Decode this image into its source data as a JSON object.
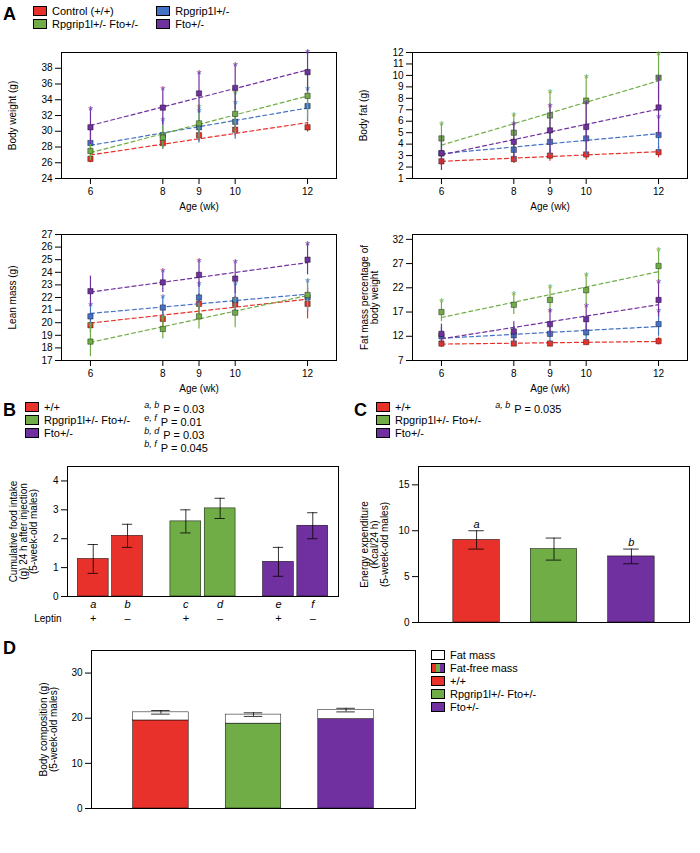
{
  "chart_data": [
    {
      "type": "scatter",
      "title": "A",
      "marker": "square",
      "line_style": "dashed",
      "legend": "top-left",
      "xlabel": "Age (wk)",
      "ylabel": "Body weight (g)",
      "x": [
        6,
        8,
        9,
        10,
        12
      ],
      "xlim": [
        5.2,
        12.8
      ],
      "xticks": [
        6,
        8,
        9,
        10,
        12
      ],
      "ylim": [
        24,
        40
      ],
      "yticks": [
        24,
        26,
        28,
        30,
        32,
        34,
        36,
        38
      ],
      "series": [
        {
          "name": "Control (+/+)",
          "color": "#e8312a",
          "values": [
            26.5,
            28.5,
            29.5,
            30.2,
            30.5
          ],
          "errors": [
            0.5,
            0.6,
            0.8,
            0.8,
            0.6
          ]
        },
        {
          "name": "Rpgrip1l+/-",
          "color": "#4472c4",
          "values": [
            28.5,
            29.5,
            30.5,
            31.2,
            33.2
          ],
          "errors": [
            1.8,
            1.8,
            2.0,
            2.2,
            2.0
          ],
          "annotations": [
            {
              "text": "*",
              "x": 6
            },
            {
              "text": "*",
              "x": 8
            },
            {
              "text": "*",
              "x": 9
            },
            {
              "text": "*",
              "x": 10
            },
            {
              "text": "*",
              "x": 12
            }
          ]
        },
        {
          "name": "Rpgrip1l+/- Fto+/-",
          "color": "#70ad47",
          "values": [
            27.5,
            29.2,
            31.0,
            32.2,
            34.5
          ],
          "errors": [
            1.2,
            1.5,
            2.0,
            2.5,
            3.0
          ],
          "annotations": [
            {
              "text": "*",
              "x": 9
            },
            {
              "text": "*",
              "x": 10
            },
            {
              "text": "*",
              "x": 12
            }
          ]
        },
        {
          "name": "Fto+/-",
          "color": "#7030a0",
          "values": [
            30.5,
            33.0,
            34.8,
            35.5,
            37.5
          ],
          "errors": [
            2.2,
            2.2,
            2.5,
            2.8,
            2.5
          ],
          "annotations": [
            {
              "text": "*",
              "x": 6
            },
            {
              "text": "*",
              "x": 8
            },
            {
              "text": "*",
              "x": 9
            },
            {
              "text": "*",
              "x": 10
            },
            {
              "text": "*",
              "x": 12
            }
          ]
        }
      ]
    },
    {
      "type": "scatter",
      "marker": "square",
      "line_style": "dashed",
      "xlabel": "Age (wk)",
      "ylabel": "Body fat (g)",
      "x": [
        6,
        8,
        9,
        10,
        12
      ],
      "xlim": [
        5.2,
        12.8
      ],
      "xticks": [
        6,
        8,
        9,
        10,
        12
      ],
      "ylim": [
        1,
        12
      ],
      "yticks": [
        1,
        2,
        3,
        4,
        5,
        6,
        7,
        8,
        9,
        10,
        11,
        12
      ],
      "series": [
        {
          "name": "Control (+/+)",
          "color": "#e8312a",
          "values": [
            2.5,
            2.7,
            3.0,
            3.1,
            3.3
          ],
          "errors": [
            0.4,
            0.4,
            0.5,
            0.5,
            0.5
          ]
        },
        {
          "name": "Rpgrip1l+/-",
          "color": "#4472c4",
          "values": [
            3.2,
            3.5,
            4.2,
            4.5,
            4.8
          ],
          "errors": [
            1.0,
            1.0,
            1.2,
            1.5,
            1.5
          ],
          "annotations": [
            {
              "text": "*",
              "x": 12
            }
          ]
        },
        {
          "name": "Rpgrip1l+/- Fto+/-",
          "color": "#70ad47",
          "values": [
            4.5,
            5.0,
            6.5,
            7.8,
            9.8
          ],
          "errors": [
            1.2,
            1.5,
            2.0,
            2.0,
            2.0
          ],
          "annotations": [
            {
              "text": "*",
              "x": 6
            },
            {
              "text": "*",
              "x": 8
            },
            {
              "text": "*",
              "x": 9
            },
            {
              "text": "*",
              "x": 10
            },
            {
              "text": "*",
              "x": 12
            }
          ]
        },
        {
          "name": "Fto+/-",
          "color": "#7030a0",
          "values": [
            3.2,
            4.2,
            5.2,
            5.5,
            7.2
          ],
          "errors": [
            1.5,
            1.5,
            2.0,
            2.0,
            2.5
          ],
          "annotations": [
            {
              "text": "*",
              "x": 8
            },
            {
              "text": "*",
              "x": 9
            },
            {
              "text": "*",
              "x": 10
            },
            {
              "text": "*",
              "x": 12
            }
          ]
        }
      ]
    },
    {
      "type": "scatter",
      "marker": "square",
      "line_style": "dashed",
      "xlabel": "Age (wk)",
      "ylabel": "Lean mass (g)",
      "x": [
        6,
        8,
        9,
        10,
        12
      ],
      "xlim": [
        5.2,
        12.8
      ],
      "xticks": [
        6,
        8,
        9,
        10,
        12
      ],
      "ylim": [
        17,
        27
      ],
      "yticks": [
        17,
        18,
        19,
        20,
        21,
        22,
        23,
        24,
        25,
        26,
        27
      ],
      "series": [
        {
          "name": "Control (+/+)",
          "color": "#e8312a",
          "values": [
            19.8,
            20.3,
            21.5,
            21.5,
            21.5
          ],
          "errors": [
            0.6,
            0.6,
            0.8,
            0.6,
            1.2
          ]
        },
        {
          "name": "Rpgrip1l+/-",
          "color": "#4472c4",
          "values": [
            20.5,
            21.2,
            22.0,
            21.8,
            22.0
          ],
          "errors": [
            0.8,
            0.8,
            1.0,
            1.2,
            1.2
          ],
          "annotations": [
            {
              "text": "*",
              "x": 6
            },
            {
              "text": "*",
              "x": 8
            },
            {
              "text": "*",
              "x": 9
            },
            {
              "text": "*",
              "x": 10
            },
            {
              "text": "*",
              "x": 12
            }
          ]
        },
        {
          "name": "Rpgrip1l+/- Fto+/-",
          "color": "#70ad47",
          "values": [
            18.5,
            19.5,
            20.5,
            20.8,
            22.2
          ],
          "errors": [
            1.2,
            0.8,
            1.0,
            1.2,
            1.2
          ],
          "annotations": [
            {
              "text": "*",
              "x": 6
            },
            {
              "text": "*",
              "x": 8
            }
          ]
        },
        {
          "name": "Fto+/-",
          "color": "#7030a0",
          "values": [
            22.5,
            23.2,
            23.8,
            23.5,
            25.0
          ],
          "errors": [
            1.2,
            0.8,
            1.0,
            1.2,
            1.2
          ],
          "annotations": [
            {
              "text": "*",
              "x": 8
            },
            {
              "text": "*",
              "x": 9
            },
            {
              "text": "*",
              "x": 10
            },
            {
              "text": "*",
              "x": 12
            }
          ]
        }
      ]
    },
    {
      "type": "scatter",
      "marker": "square",
      "line_style": "dashed",
      "xlabel": "Age (wk)",
      "ylabel": "Fat mass percentage of\nbody weight",
      "x": [
        6,
        8,
        9,
        10,
        12
      ],
      "xlim": [
        5.2,
        12.8
      ],
      "xticks": [
        6,
        8,
        9,
        10,
        12
      ],
      "ylim": [
        7,
        33
      ],
      "yticks": [
        7,
        12,
        17,
        22,
        27,
        32
      ],
      "series": [
        {
          "name": "Control (+/+)",
          "color": "#e8312a",
          "values": [
            10.5,
            10.5,
            10.5,
            10.8,
            11.0
          ],
          "errors": [
            0.8,
            0.6,
            0.6,
            0.6,
            0.8
          ]
        },
        {
          "name": "Rpgrip1l+/-",
          "color": "#4472c4",
          "values": [
            12.0,
            12.2,
            12.5,
            12.8,
            14.5
          ],
          "errors": [
            1.8,
            1.8,
            1.8,
            1.8,
            2.5
          ],
          "annotations": [
            {
              "text": "*",
              "x": 12
            }
          ]
        },
        {
          "name": "Rpgrip1l+/- Fto+/-",
          "color": "#70ad47",
          "values": [
            17.0,
            18.5,
            19.5,
            21.5,
            26.5
          ],
          "errors": [
            2.0,
            2.0,
            2.5,
            3.0,
            3.0
          ],
          "annotations": [
            {
              "text": "*",
              "x": 6
            },
            {
              "text": "*",
              "x": 8
            },
            {
              "text": "*",
              "x": 9
            },
            {
              "text": "*",
              "x": 10
            },
            {
              "text": "*",
              "x": 12
            }
          ]
        },
        {
          "name": "Fto+/-",
          "color": "#7030a0",
          "values": [
            12.5,
            13.0,
            14.5,
            15.5,
            19.5
          ],
          "errors": [
            2.0,
            2.0,
            2.5,
            2.5,
            3.5
          ],
          "annotations": [
            {
              "text": "*",
              "x": 9
            },
            {
              "text": "*",
              "x": 10
            },
            {
              "text": "*",
              "x": 12
            }
          ]
        }
      ]
    },
    {
      "type": "bar",
      "title": "B",
      "legend": "top-left",
      "categories": [
        "+/+",
        "Rpgrip1l+/- Fto+/-",
        "Fto+/-"
      ],
      "colors": [
        "#e8312a",
        "#70ad47",
        "#7030a0"
      ],
      "xlabel": "Leptin",
      "ylabel": "Cumulative food intake\n(g) 24 h after injection\n(5-week-old males)",
      "ylim": [
        0,
        4.5
      ],
      "yticks": [
        0,
        1,
        2,
        3,
        4
      ],
      "series": [
        {
          "name": "+",
          "values": [
            1.3,
            2.6,
            1.2
          ],
          "errors": [
            0.5,
            0.4,
            0.5
          ],
          "labels": [
            "a",
            "c",
            "e"
          ]
        },
        {
          "name": "–",
          "values": [
            2.1,
            3.05,
            2.45
          ],
          "errors": [
            0.4,
            0.35,
            0.45
          ],
          "labels": [
            "b",
            "d",
            "f"
          ]
        }
      ],
      "annotations": [
        {
          "label": "a, b",
          "text": "P = 0.03"
        },
        {
          "label": "e, f",
          "text": "P = 0.01"
        },
        {
          "label": "b, d",
          "text": "P = 0.03"
        },
        {
          "label": "b, f",
          "text": "P = 0.045"
        }
      ]
    },
    {
      "type": "bar",
      "title": "C",
      "legend": "top-left",
      "categories": [
        "+/+",
        "Rpgrip1l+/- Fto+/-",
        "Fto+/-"
      ],
      "colors": [
        "#e8312a",
        "#70ad47",
        "#7030a0"
      ],
      "values": [
        9.0,
        8.0,
        7.2
      ],
      "errors": [
        1.0,
        1.2,
        0.8
      ],
      "labels": [
        "a",
        null,
        "b"
      ],
      "ylabel": "Energy expenditure\n(Kcal/24 h)\n(5-week-old males)",
      "ylim": [
        0,
        17
      ],
      "yticks": [
        0,
        5,
        10,
        15
      ],
      "annotations": [
        {
          "label": "a, b",
          "text": "P = 0.035"
        }
      ]
    },
    {
      "type": "bar",
      "title": "D",
      "legend": "right",
      "stacked": true,
      "categories": [
        "+/+",
        "Rpgrip1l+/- Fto+/-",
        "Fto+/-"
      ],
      "colors": [
        "#e8312a",
        "#70ad47",
        "#7030a0"
      ],
      "series": [
        {
          "name": "Fat-free mass",
          "values": [
            19.5,
            18.8,
            19.8
          ]
        },
        {
          "name": "Fat mass",
          "color": "#ffffff",
          "values": [
            1.8,
            2.0,
            2.0
          ]
        }
      ],
      "total_errors": [
        0.4,
        0.4,
        0.4
      ],
      "ylabel": "Body composition (g)\n(5-week-old males)",
      "ylim": [
        0,
        35
      ],
      "yticks": [
        0,
        10,
        20,
        30
      ]
    }
  ]
}
